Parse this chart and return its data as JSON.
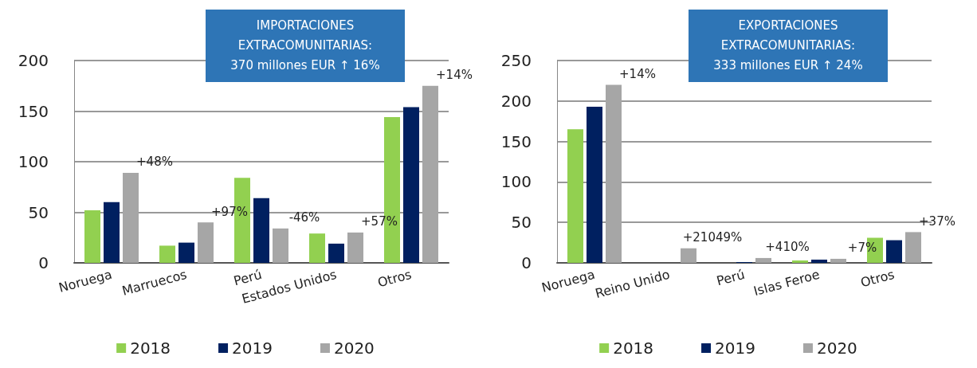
{
  "chart_data": [
    {
      "type": "bar",
      "title": "IMPORTACIONES\nEXTRACOMUNITARIAS:\n370 millones EUR ↑ 16%",
      "categories": [
        "Noruega",
        "Marruecos",
        "Perú",
        "Estados Unidos",
        "Otros"
      ],
      "series": [
        {
          "name": "2018",
          "color": "#92d050",
          "values": [
            52,
            17,
            84,
            29,
            144
          ]
        },
        {
          "name": "2019",
          "color": "#002060",
          "values": [
            60,
            20,
            64,
            19,
            154
          ]
        },
        {
          "name": "2020",
          "color": "#a6a6a6",
          "values": [
            89,
            40,
            34,
            30,
            175
          ]
        }
      ],
      "annotations": [
        "+48%",
        "+97%",
        "-46%",
        "+57%",
        "+14%"
      ],
      "ylim": [
        0,
        200
      ],
      "yticks": [
        0,
        50,
        100,
        150,
        200
      ],
      "grid": "y",
      "legend": "bottom"
    },
    {
      "type": "bar",
      "title": "EXPORTACIONES\nEXTRACOMUNITARIAS:\n333 millones EUR ↑ 24%",
      "categories": [
        "Noruega",
        "Reino Unido",
        "Perú",
        "Islas Feroe",
        "Otros"
      ],
      "series": [
        {
          "name": "2018",
          "color": "#92d050",
          "values": [
            165,
            0,
            0,
            3,
            31
          ]
        },
        {
          "name": "2019",
          "color": "#002060",
          "values": [
            193,
            0,
            1,
            4,
            28
          ]
        },
        {
          "name": "2020",
          "color": "#a6a6a6",
          "values": [
            220,
            18,
            6,
            5,
            38
          ]
        }
      ],
      "annotations": [
        "+14%",
        "+21049%",
        "+410%",
        "+7%",
        "+37%"
      ],
      "ylim": [
        0,
        250
      ],
      "yticks": [
        0,
        50,
        100,
        150,
        200,
        250
      ],
      "grid": "y",
      "legend": "bottom"
    }
  ]
}
